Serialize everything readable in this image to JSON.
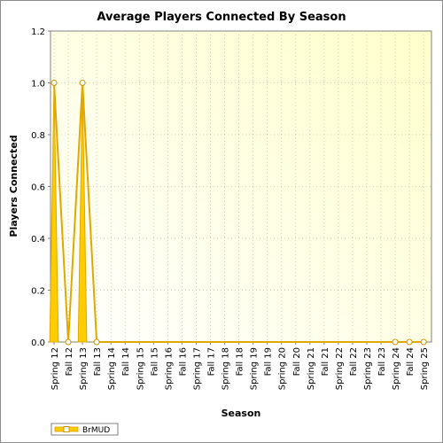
{
  "chart_data": {
    "type": "line",
    "title": "Average Players Connected By Season",
    "xlabel": "Season",
    "ylabel": "Players Connected",
    "categories": [
      "Spring 12",
      "Fall 12",
      "Spring 13",
      "Fall 13",
      "Spring 14",
      "Fall 14",
      "Spring 15",
      "Fall 15",
      "Spring 16",
      "Fall 16",
      "Spring 17",
      "Fall 17",
      "Spring 18",
      "Fall 18",
      "Spring 19",
      "Fall 19",
      "Spring 20",
      "Fall 20",
      "Spring 21",
      "Fall 21",
      "Spring 22",
      "Fall 22",
      "Spring 23",
      "Fall 23",
      "Spring 24",
      "Fall 24",
      "Spring 25"
    ],
    "y_ticks": [
      "0.0",
      "0.2",
      "0.4",
      "0.6",
      "0.8",
      "1.0",
      "1.2"
    ],
    "ylim": [
      0,
      1.2
    ],
    "grid": true,
    "legend_position": "bottom-left",
    "series": [
      {
        "name": "BrMUD",
        "color": "#ffcc00",
        "points": [
          {
            "x": "Spring 12",
            "y": 1.0
          },
          {
            "x": "Fall 12",
            "y": 0.0
          },
          {
            "x": "Spring 13",
            "y": 1.0
          },
          {
            "x": "Fall 13",
            "y": 0.0
          },
          {
            "x": "Spring 24",
            "y": 0.0
          },
          {
            "x": "Fall 24",
            "y": 0.0
          },
          {
            "x": "Spring 25",
            "y": 0.0
          }
        ]
      }
    ]
  }
}
